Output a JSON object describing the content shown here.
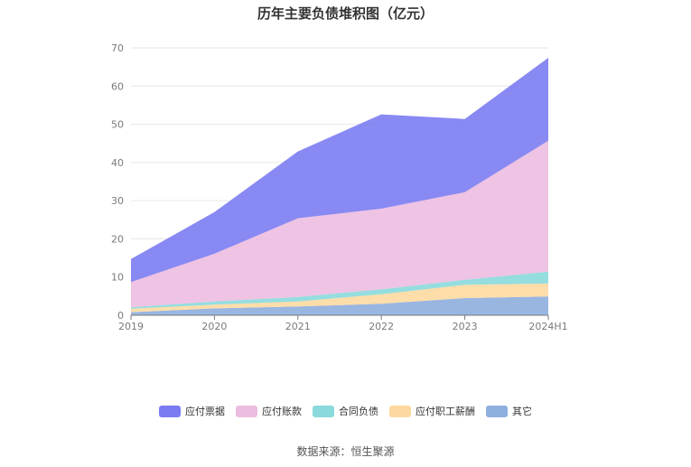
{
  "title": "历年主要负债堆积图（亿元）",
  "source": "数据来源：恒生聚源",
  "chart_data": {
    "type": "area",
    "stacked": true,
    "categories": [
      "2019",
      "2020",
      "2021",
      "2022",
      "2023",
      "2024H1"
    ],
    "ylim": [
      0,
      70
    ],
    "yticks": [
      "0",
      "10",
      "20",
      "30",
      "40",
      "50",
      "60",
      "70"
    ],
    "grid": true,
    "legend_position": "bottom",
    "series": [
      {
        "name": "其它",
        "color": "#8eaede",
        "values": [
          0.8,
          1.8,
          2.3,
          3.0,
          4.5,
          4.9
        ]
      },
      {
        "name": "应付职工薪酬",
        "color": "#fdd9a0",
        "values": [
          0.9,
          1.0,
          1.3,
          2.5,
          3.5,
          3.4
        ]
      },
      {
        "name": "合同负债",
        "color": "#8ad9dc",
        "values": [
          0.4,
          0.8,
          1.2,
          1.3,
          1.3,
          3.1
        ]
      },
      {
        "name": "应付账款",
        "color": "#ecbde0",
        "values": [
          6.6,
          12.5,
          20.6,
          21.1,
          22.9,
          34.3
        ]
      },
      {
        "name": "应付票据",
        "color": "#7b7cf2",
        "values": [
          6.0,
          10.9,
          17.5,
          24.7,
          19.2,
          21.7
        ]
      }
    ]
  },
  "legend": [
    {
      "label": "应付票据",
      "color": "#7b7cf2"
    },
    {
      "label": "应付账款",
      "color": "#ecbde0"
    },
    {
      "label": "合同负债",
      "color": "#8ad9dc"
    },
    {
      "label": "应付职工薪酬",
      "color": "#fdd9a0"
    },
    {
      "label": "其它",
      "color": "#8eaede"
    }
  ]
}
